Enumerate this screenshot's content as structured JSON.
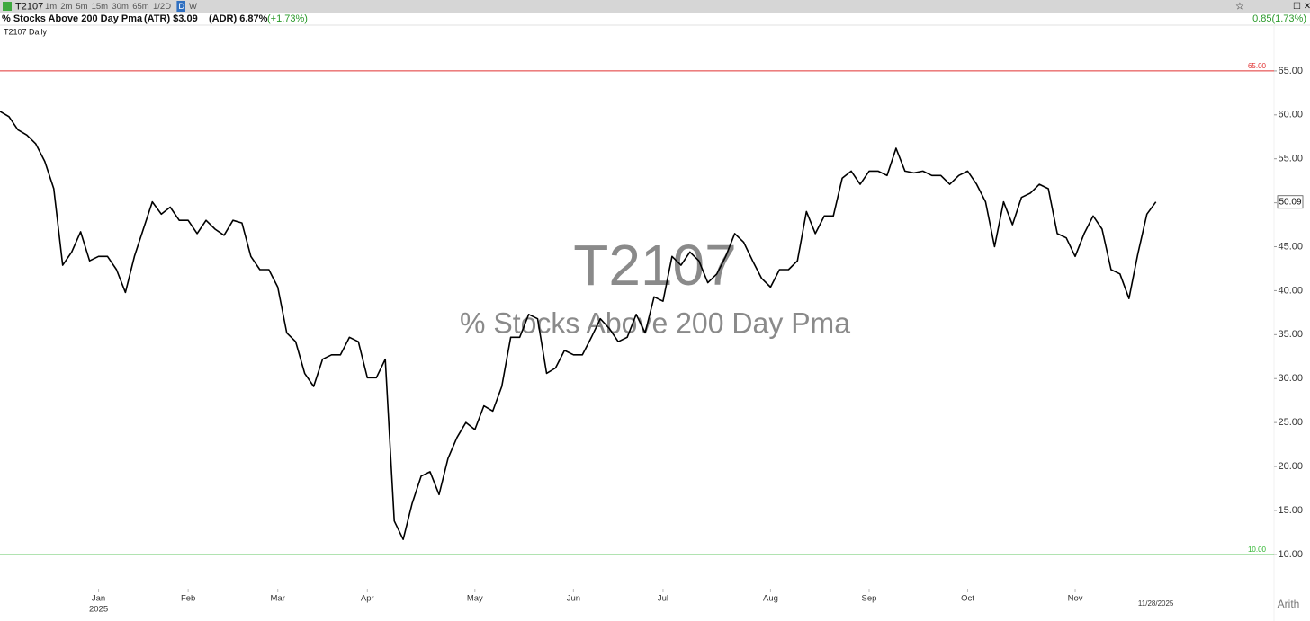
{
  "toolbar": {
    "symbol": "T2107",
    "timeframes": [
      "1m",
      "2m",
      "5m",
      "15m",
      "30m",
      "65m",
      "1/2D",
      "D",
      "W"
    ],
    "active_timeframe": "D",
    "change": "0.85(1.73%)"
  },
  "header": {
    "name": "% Stocks Above 200 Day Pma",
    "atr": "(ATR) $3.09",
    "adr": "(ADR) 6.87%",
    "pct_change": "(+1.73%)",
    "chart_label": "T2107 Daily"
  },
  "chart_data": {
    "type": "line",
    "title": "T2107",
    "subtitle": "% Stocks Above 200 Day Pma",
    "color": "#000000",
    "values": [
      60.4,
      59.8,
      58.3,
      57.7,
      56.7,
      54.7,
      51.6,
      42.9,
      44.4,
      46.7,
      43.4,
      43.9,
      43.9,
      42.4,
      39.8,
      43.9,
      47.0,
      50.1,
      48.7,
      49.5,
      48.0,
      48.0,
      46.5,
      48.0,
      47.0,
      46.3,
      48.0,
      47.7,
      43.9,
      42.4,
      42.4,
      40.4,
      35.2,
      34.2,
      30.6,
      29.1,
      32.2,
      32.7,
      32.7,
      34.7,
      34.2,
      30.1,
      30.1,
      32.2,
      13.8,
      11.7,
      15.8,
      18.9,
      19.4,
      16.8,
      20.9,
      23.3,
      25.0,
      24.2,
      26.9,
      26.3,
      29.1,
      34.7,
      34.7,
      37.3,
      36.8,
      30.6,
      31.2,
      33.2,
      32.7,
      32.7,
      34.7,
      36.8,
      35.7,
      34.2,
      34.7,
      37.3,
      35.2,
      39.3,
      38.8,
      43.9,
      42.9,
      44.4,
      43.4,
      40.9,
      41.9,
      43.9,
      46.5,
      45.5,
      43.4,
      41.4,
      40.4,
      42.4,
      42.4,
      43.4,
      49.0,
      46.5,
      48.5,
      48.5,
      52.8,
      53.6,
      52.1,
      53.6,
      53.6,
      53.1,
      56.2,
      53.6,
      53.4,
      53.6,
      53.1,
      53.1,
      52.1,
      53.1,
      53.6,
      52.1,
      50.1,
      45.0,
      50.1,
      47.5,
      50.6,
      51.1,
      52.1,
      51.6,
      46.5,
      46.0,
      43.9,
      46.5,
      48.5,
      47.0,
      42.4,
      41.9,
      39.1,
      44.2,
      48.7,
      50.09
    ],
    "xlim": [
      0,
      145
    ],
    "xticks": [
      {
        "value": 11,
        "label": "Jan"
      },
      {
        "value": 21,
        "label": "Feb"
      },
      {
        "value": 31,
        "label": "Mar"
      },
      {
        "value": 41,
        "label": "Apr"
      },
      {
        "value": 53,
        "label": "May"
      },
      {
        "value": 64,
        "label": "Jun"
      },
      {
        "value": 74,
        "label": "Jul"
      },
      {
        "value": 86,
        "label": "Aug"
      },
      {
        "value": 97,
        "label": "Sep"
      },
      {
        "value": 108,
        "label": "Oct"
      },
      {
        "value": 120,
        "label": "Nov"
      }
    ],
    "year_label": "2025",
    "last_date": "11/28/2025",
    "ylim": [
      6.1,
      70
    ],
    "yticks": [
      {
        "value": 10,
        "label": "10.00"
      },
      {
        "value": 15,
        "label": "15.00"
      },
      {
        "value": 20,
        "label": "20.00"
      },
      {
        "value": 25,
        "label": "25.00"
      },
      {
        "value": 30,
        "label": "30.00"
      },
      {
        "value": 35,
        "label": "35.00"
      },
      {
        "value": 40,
        "label": "40.00"
      },
      {
        "value": 45,
        "label": "45.00"
      },
      {
        "value": 50,
        "label": "50.00"
      },
      {
        "value": 55,
        "label": "55.00"
      },
      {
        "value": 60,
        "label": "60.00"
      },
      {
        "value": 65,
        "label": "65.00"
      }
    ],
    "reference_lines": [
      {
        "value": 65,
        "label": "65.00",
        "color": "#e03030"
      },
      {
        "value": 10,
        "label": "10.00",
        "color": "#2fb52f"
      }
    ],
    "scale": "Arith"
  }
}
